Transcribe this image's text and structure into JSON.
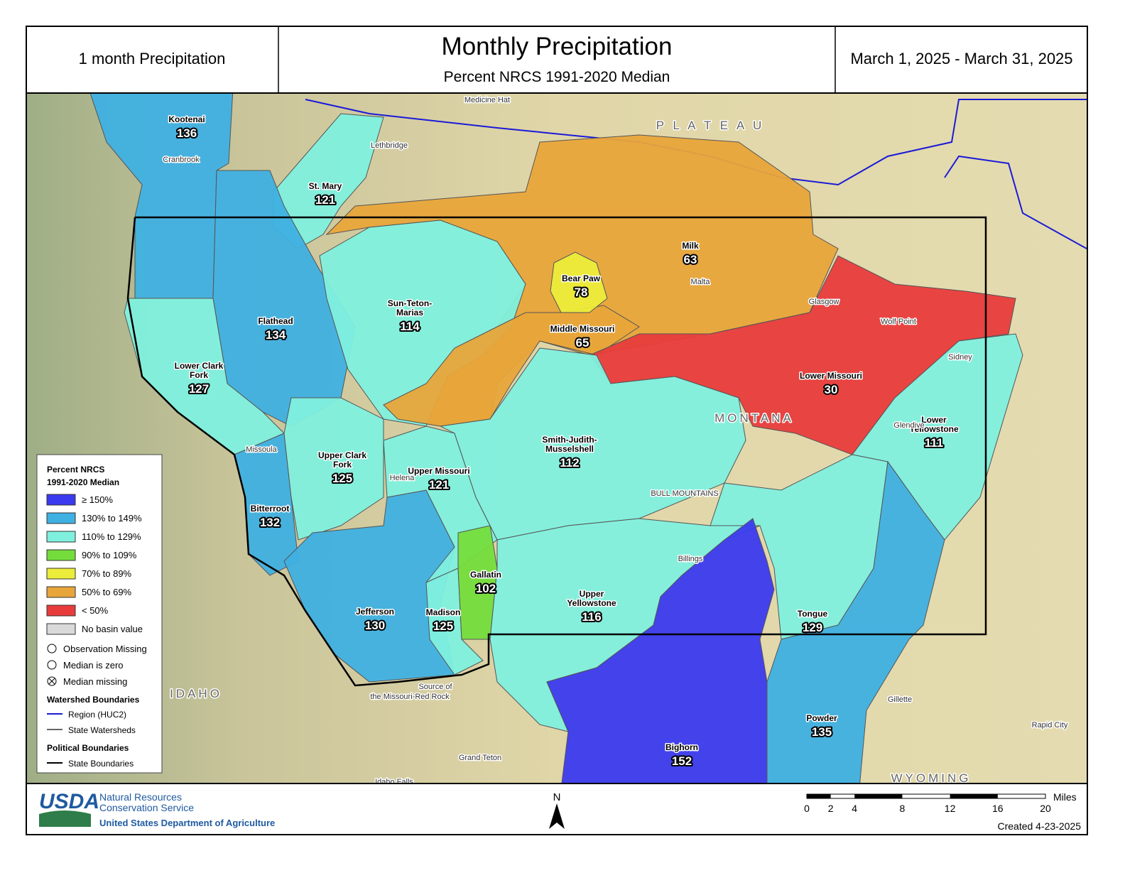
{
  "header": {
    "left": "1 month Precipitation",
    "title": "Monthly Precipitation",
    "subtitle": "Percent NRCS 1991-2020 Median",
    "dates": "March 1, 2025 - March 31, 2025"
  },
  "basins": [
    {
      "name": [
        "Milk"
      ],
      "value": 63,
      "color": "#e8a53a"
    },
    {
      "name": [
        "Kootenai"
      ],
      "value": 136,
      "color": "#3fb0e2"
    },
    {
      "name": [
        "St. Mary"
      ],
      "value": 121,
      "color": "#80f0de"
    },
    {
      "name": [
        "Flathead"
      ],
      "value": 134,
      "color": "#3fb0e2"
    },
    {
      "name": [
        "Lower Clark",
        "Fork"
      ],
      "value": 127,
      "color": "#80f0de"
    },
    {
      "name": [
        "Bitterroot"
      ],
      "value": 132,
      "color": "#3fb0e2"
    },
    {
      "name": [
        "Upper Clark",
        "Fork"
      ],
      "value": 125,
      "color": "#80f0de"
    },
    {
      "name": [
        "Jefferson"
      ],
      "value": 130,
      "color": "#3fb0e2"
    },
    {
      "name": [
        "Upper Missouri"
      ],
      "value": 121,
      "color": "#80f0de"
    },
    {
      "name": [
        "Madison"
      ],
      "value": 125,
      "color": "#80f0de"
    },
    {
      "name": [
        "Gallatin"
      ],
      "value": 102,
      "color": "#74dd3c"
    },
    {
      "name": [
        "Sun-Teton-",
        "Marias"
      ],
      "value": 114,
      "color": "#80f0de"
    },
    {
      "name": [
        "Middle Missouri"
      ],
      "value": 65,
      "color": "#e8a53a"
    },
    {
      "name": [
        "Bear Paw"
      ],
      "value": 78,
      "color": "#ecec3a"
    },
    {
      "name": [
        "Lower Missouri"
      ],
      "value": 30,
      "color": "#e83c3c"
    },
    {
      "name": [
        "Smith-Judith-",
        "Musselshell"
      ],
      "value": 112,
      "color": "#80f0de"
    },
    {
      "name": [
        "Lower",
        "Yellowstone"
      ],
      "value": 111,
      "color": "#80f0de"
    },
    {
      "name": [
        "Tongue"
      ],
      "value": 129,
      "color": "#80f0de"
    },
    {
      "name": [
        "Powder"
      ],
      "value": 135,
      "color": "#3fb0e2"
    },
    {
      "name": [
        "Upper",
        "Yellowstone"
      ],
      "value": 116,
      "color": "#80f0de"
    },
    {
      "name": [
        "Bighorn"
      ],
      "value": 152,
      "color": "#3a3aee"
    }
  ],
  "legend": {
    "title": [
      "Percent NRCS",
      "1991-2020 Median"
    ],
    "classes": [
      {
        "label": "≥ 150%",
        "color": "#3a3aee"
      },
      {
        "label": "130% to 149%",
        "color": "#3fb0e2"
      },
      {
        "label": "110% to 129%",
        "color": "#80f0de"
      },
      {
        "label": "90% to 109%",
        "color": "#74dd3c"
      },
      {
        "label": "70% to 89%",
        "color": "#ecec3a"
      },
      {
        "label": "50% to 69%",
        "color": "#e8a53a"
      },
      {
        "label": "< 50%",
        "color": "#e83c3c"
      },
      {
        "label": "No basin value",
        "color": "#d9d9d9"
      }
    ],
    "symbols": [
      "Observation Missing",
      "Median is zero",
      "Median missing"
    ],
    "watershed_title": "Watershed Boundaries",
    "watershed_items": [
      "Region (HUC2)",
      "State Watersheds"
    ],
    "political_title": "Political Boundaries",
    "political_items": [
      "State Boundaries"
    ]
  },
  "places": [
    "Medicine Hat",
    "Lethbridge",
    "Cranbrook",
    "Missoula",
    "Helena",
    "Malta",
    "Glasgow",
    "Wolf Point",
    "Sidney",
    "Glendive",
    "Billings",
    "Gillette",
    "Rapid City",
    "Grand Teton",
    "Idaho Falls",
    "Source of",
    "the Missouri-Red Rock",
    "MONTANA",
    "IDAHO",
    "WYOMING",
    "BULL MOUNTAINS",
    "P L A T E A U"
  ],
  "footer": {
    "agency": "USDA",
    "agency_lines": [
      "Natural Resources",
      "Conservation Service"
    ],
    "department": "United States Department of Agriculture",
    "north": "N",
    "scale_unit": "Miles",
    "scale_ticks": [
      0,
      2,
      4,
      8,
      12,
      16,
      20
    ],
    "created": "Created 4-23-2025"
  }
}
